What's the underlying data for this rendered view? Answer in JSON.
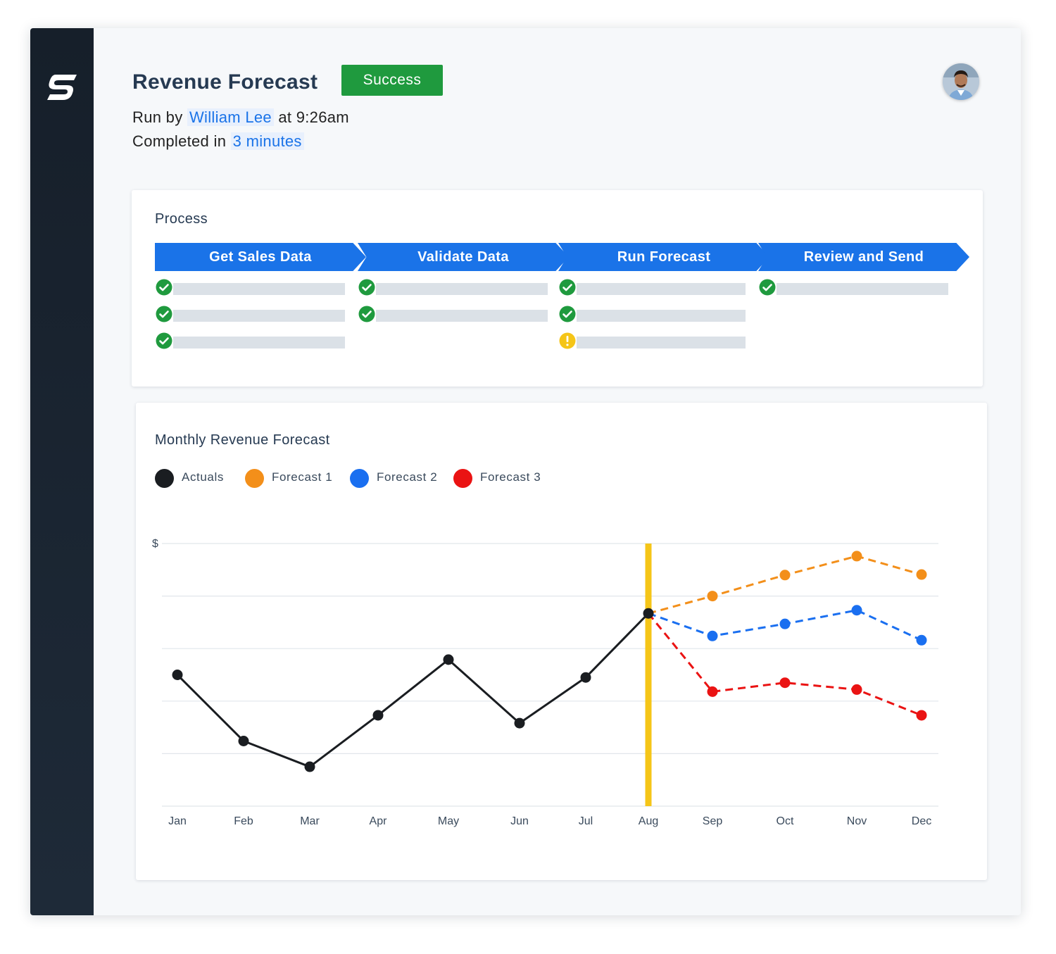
{
  "header": {
    "title": "Revenue Forecast",
    "status": "Success",
    "run_by_prefix": "Run by",
    "run_by_user": "William Lee",
    "run_at": "at 9:26am",
    "completed_prefix": "Completed in",
    "duration": "3 minutes"
  },
  "colors": {
    "sidebar": "#1b2531",
    "accent_blue": "#1a73e8",
    "success_green": "#1f9a3e",
    "warning_yellow": "#f5c518",
    "actuals": "#1a1d21",
    "forecast1": "#f38f1a",
    "forecast2": "#1a6ff0",
    "forecast3": "#ea1313"
  },
  "process": {
    "title": "Process",
    "stages": [
      {
        "label": "Get Sales Data",
        "steps": [
          "success",
          "success",
          "success"
        ]
      },
      {
        "label": "Validate Data",
        "steps": [
          "success",
          "success"
        ]
      },
      {
        "label": "Run Forecast",
        "steps": [
          "success",
          "success",
          "warning"
        ]
      },
      {
        "label": "Review and Send",
        "steps": [
          "success"
        ]
      }
    ]
  },
  "chart_data": {
    "type": "line",
    "title": "Monthly Revenue Forecast",
    "ylabel": "$",
    "xlabel": "",
    "categories": [
      "Jan",
      "Feb",
      "Mar",
      "Apr",
      "May",
      "Jun",
      "Jul",
      "Aug",
      "Sep",
      "Oct",
      "Nov",
      "Dec"
    ],
    "ylim": [
      0,
      5
    ],
    "grid": true,
    "legend_position": "top-left",
    "marker_category": "Aug",
    "series": [
      {
        "name": "Actuals",
        "color": "#1a1d21",
        "style": "solid",
        "values": [
          2.5,
          1.24,
          0.75,
          1.73,
          2.79,
          1.58,
          2.45,
          3.67,
          null,
          null,
          null,
          null
        ]
      },
      {
        "name": "Forecast 1",
        "color": "#f38f1a",
        "style": "dashed",
        "values": [
          null,
          null,
          null,
          null,
          null,
          null,
          null,
          3.67,
          4.0,
          4.4,
          4.76,
          4.41
        ]
      },
      {
        "name": "Forecast 2",
        "color": "#1a6ff0",
        "style": "dashed",
        "values": [
          null,
          null,
          null,
          null,
          null,
          null,
          null,
          3.67,
          3.24,
          3.47,
          3.73,
          3.16
        ]
      },
      {
        "name": "Forecast 3",
        "color": "#ea1313",
        "style": "dashed",
        "values": [
          null,
          null,
          null,
          null,
          null,
          null,
          null,
          3.67,
          2.18,
          2.35,
          2.22,
          1.73
        ]
      }
    ]
  }
}
